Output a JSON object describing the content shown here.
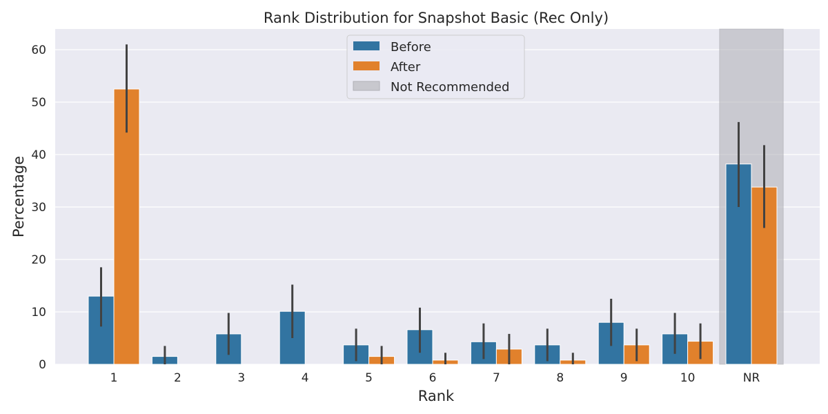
{
  "chart_data": {
    "type": "bar",
    "title": "Rank Distribution for Snapshot Basic (Rec Only)",
    "xlabel": "Rank",
    "ylabel": "Percentage",
    "categories": [
      "1",
      "2",
      "3",
      "4",
      "5",
      "6",
      "7",
      "8",
      "9",
      "10",
      "NR"
    ],
    "ylim": [
      0,
      64
    ],
    "yticks": [
      0,
      10,
      20,
      30,
      40,
      50,
      60
    ],
    "grid": true,
    "legend_position": "top-center",
    "series": [
      {
        "name": "Before",
        "color": "#3274a1",
        "values": [
          13.0,
          1.5,
          5.8,
          10.1,
          3.7,
          6.6,
          4.3,
          3.7,
          8.0,
          5.8,
          38.2
        ],
        "error_low": [
          7.2,
          0.0,
          1.8,
          5.0,
          0.6,
          2.2,
          1.0,
          0.6,
          3.5,
          2.0,
          30.0
        ],
        "error_high": [
          18.5,
          3.5,
          9.8,
          15.2,
          6.8,
          10.8,
          7.8,
          6.8,
          12.5,
          9.8,
          46.2
        ]
      },
      {
        "name": "After",
        "color": "#e1812c",
        "values": [
          52.5,
          0.0,
          0.0,
          0.0,
          1.5,
          0.8,
          2.9,
          0.8,
          3.7,
          4.4,
          33.8
        ],
        "error_low": [
          44.2,
          0.0,
          0.0,
          0.0,
          0.0,
          0.0,
          0.0,
          0.0,
          0.6,
          1.0,
          26.0
        ],
        "error_high": [
          61.0,
          0.0,
          0.0,
          0.0,
          3.5,
          2.2,
          5.8,
          2.2,
          6.8,
          7.8,
          41.8
        ]
      }
    ],
    "highlight": {
      "category": "NR",
      "label": "Not Recommended",
      "color": "#c8c8ce"
    }
  }
}
